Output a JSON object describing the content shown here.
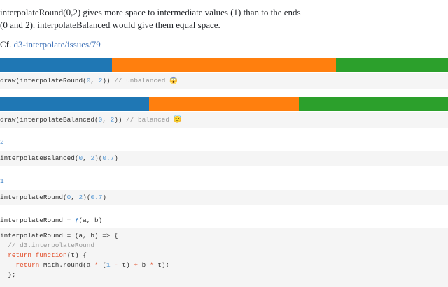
{
  "intro": {
    "lines": [
      "interpolateRound(0,2) gives more space to intermediate values (1) than to the ends",
      "(0 and 2). interpolateBalanced would give them equal space."
    ],
    "cf": "Cf.",
    "link": "d3-interpolate/issues/79"
  },
  "cells": [
    {
      "code": [
        [
          {
            "text": "draw(interpolateRound("
          },
          {
            "text": "0",
            "color": "#5b9bd5"
          },
          {
            "text": ", "
          },
          {
            "text": "2",
            "color": "#5b9bd5"
          },
          {
            "text": ")) "
          },
          {
            "text": "// unbalanced 😱",
            "color": "#999999"
          }
        ]
      ]
    },
    {
      "code": [
        [
          {
            "text": "draw(interpolateBalanced("
          },
          {
            "text": "0",
            "color": "#5b9bd5"
          },
          {
            "text": ", "
          },
          {
            "text": "2",
            "color": "#5b9bd5"
          },
          {
            "text": ")) "
          },
          {
            "text": "// balanced 😇",
            "color": "#999999"
          }
        ]
      ]
    },
    {
      "output": [
        {
          "text": "2",
          "color": "#3b7fc4"
        }
      ],
      "code": [
        [
          {
            "text": "interpolateBalanced("
          },
          {
            "text": "0",
            "color": "#5b9bd5"
          },
          {
            "text": ", "
          },
          {
            "text": "2",
            "color": "#5b9bd5"
          },
          {
            "text": ")("
          },
          {
            "text": "0.7",
            "color": "#5b9bd5"
          },
          {
            "text": ")"
          }
        ]
      ]
    },
    {
      "output": [
        {
          "text": "1",
          "color": "#3b7fc4"
        }
      ],
      "code": [
        [
          {
            "text": "interpolateRound("
          },
          {
            "text": "0",
            "color": "#5b9bd5"
          },
          {
            "text": ", "
          },
          {
            "text": "2",
            "color": "#5b9bd5"
          },
          {
            "text": ")("
          },
          {
            "text": "0.7",
            "color": "#5b9bd5"
          },
          {
            "text": ")"
          }
        ]
      ]
    },
    {
      "output": [
        {
          "text": "interpolateRound = "
        },
        {
          "text": "ƒ",
          "color": "#3b7fc4"
        },
        {
          "text": "(a, b)"
        }
      ],
      "code": [
        [
          {
            "text": "interpolateRound = (a, b) => {"
          }
        ],
        [
          {
            "text": "  "
          },
          {
            "text": "// d3.interpolateRound",
            "color": "#999999"
          }
        ],
        [
          {
            "text": "  "
          },
          {
            "text": "return",
            "color": "#e2502c"
          },
          {
            "text": " "
          },
          {
            "text": "function",
            "color": "#e2502c"
          },
          {
            "text": "(t) {"
          }
        ],
        [
          {
            "text": "    "
          },
          {
            "text": "return",
            "color": "#e2502c"
          },
          {
            "text": " Math.round(a "
          },
          {
            "text": "*",
            "color": "#e2502c"
          },
          {
            "text": " ("
          },
          {
            "text": "1",
            "color": "#5b9bd5"
          },
          {
            "text": " "
          },
          {
            "text": "-",
            "color": "#e2502c"
          },
          {
            "text": " t) "
          },
          {
            "text": "+",
            "color": "#e2502c"
          },
          {
            "text": " b "
          },
          {
            "text": "*",
            "color": "#e2502c"
          },
          {
            "text": " t);"
          }
        ],
        [
          {
            "text": "  };"
          }
        ]
      ]
    }
  ]
}
